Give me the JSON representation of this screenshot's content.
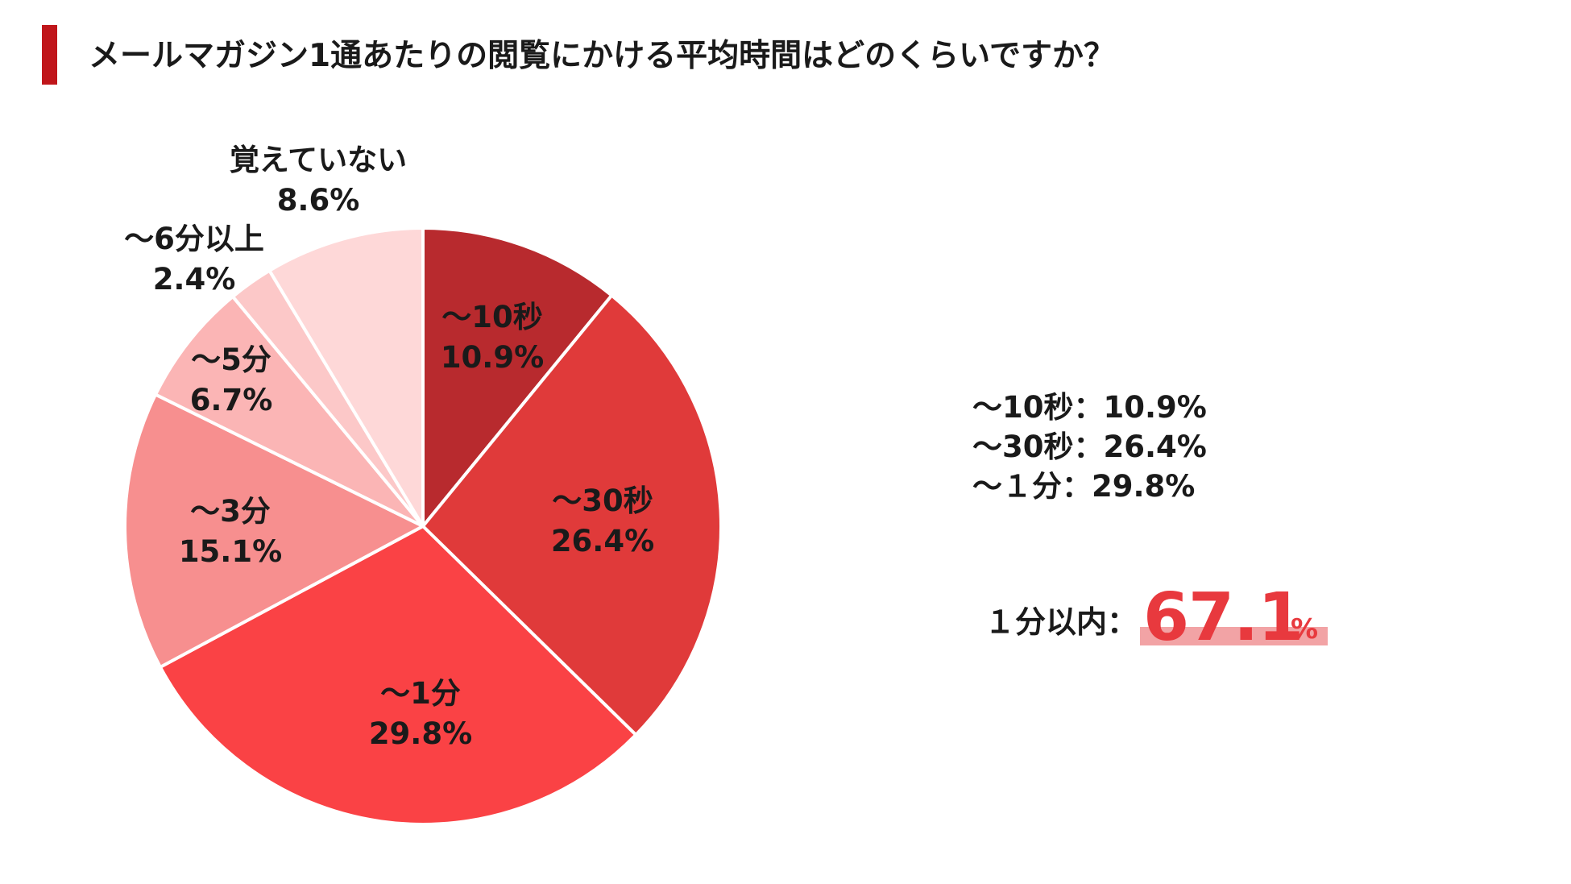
{
  "title": "メールマガジン1通あたりの閲覧にかける平均時間はどのくらいですか？",
  "chart_data": {
    "type": "pie",
    "title": "メールマガジン1通あたりの閲覧にかける平均時間はどのくらいですか？",
    "slices": [
      {
        "label": "〜10秒",
        "value": 10.9,
        "display": "10.9%",
        "color": "#b82a2e"
      },
      {
        "label": "〜30秒",
        "value": 26.4,
        "display": "26.4%",
        "color": "#e03a3a"
      },
      {
        "label": "〜1分",
        "value": 29.8,
        "display": "29.8%",
        "color": "#fa4245"
      },
      {
        "label": "〜3分",
        "value": 15.1,
        "display": "15.1%",
        "color": "#f78f8f"
      },
      {
        "label": "〜5分",
        "value": 6.7,
        "display": "6.7%",
        "color": "#fbb5b5"
      },
      {
        "label": "〜6分以上",
        "value": 2.4,
        "display": "2.4%",
        "color": "#fcc8c8"
      },
      {
        "label": "覚えていない",
        "value": 8.6,
        "display": "8.6%",
        "color": "#fed8d8"
      }
    ],
    "start_angle": "12 o'clock",
    "direction": "clockwise"
  },
  "summary": {
    "lines": [
      "〜10秒：10.9%",
      "〜30秒：26.4%",
      "〜１分：29.8%"
    ],
    "total_label": "１分以内：",
    "total_value": "67.1",
    "total_unit": "%"
  },
  "colors": {
    "accent": "#c0161b",
    "highlight_text": "#e8393e",
    "highlight_bar": "#f2a3a5"
  }
}
